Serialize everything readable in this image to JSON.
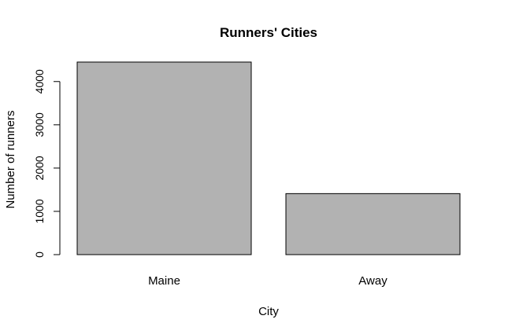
{
  "chart_data": {
    "type": "bar",
    "title": "Runners' Cities",
    "xlabel": "City",
    "ylabel": "Number of runners",
    "categories": [
      "Maine",
      "Away"
    ],
    "values": [
      4450,
      1410
    ],
    "yticks": [
      0,
      1000,
      2000,
      3000,
      4000
    ],
    "ylim": [
      0,
      4450
    ],
    "bar_color": "#b2b2b2",
    "grid": false,
    "legend": "none"
  }
}
